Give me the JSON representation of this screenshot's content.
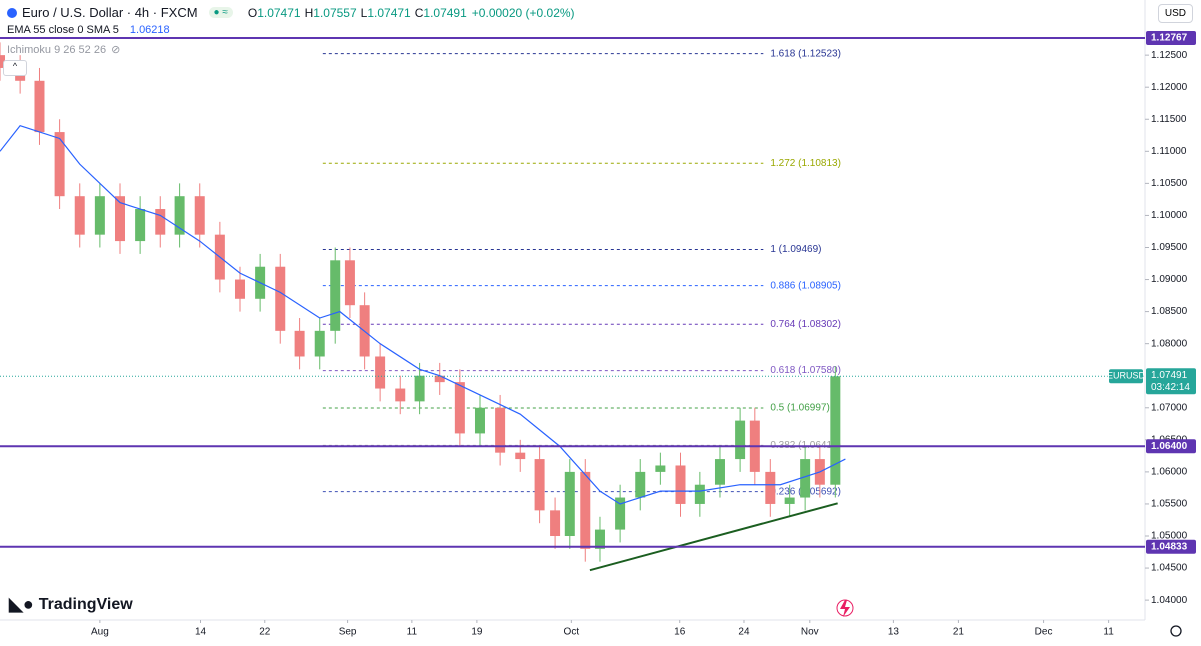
{
  "header": {
    "symbol": "Euro / U.S. Dollar · 4h · FXCM",
    "ohlc": [
      {
        "label": "O",
        "value": "1.07471"
      },
      {
        "label": "H",
        "value": "1.07557"
      },
      {
        "label": "L",
        "value": "1.07471"
      },
      {
        "label": "C",
        "value": "1.07491"
      }
    ],
    "change": "+0.00020 (+0.02%)",
    "ema_legend": "EMA 55 close 0 SMA 5",
    "ema_value": "1.06218",
    "ichimoku": "Ichimoku 9 26 52 26",
    "currency": "USD",
    "brand": "TradingView"
  },
  "chart_data": {
    "type": "candlestick",
    "x": [
      200.1,
      202.7,
      205.2,
      207.8,
      210.4,
      213,
      215.6,
      218.2,
      220.8,
      223.3,
      225.9,
      228.5,
      231.1,
      233.7,
      236.3,
      238.8,
      241.4,
      243.4,
      245.3,
      247.2,
      249.2,
      251.8,
      254.3,
      256.9,
      259.5,
      262.1,
      264.7,
      267.3,
      269.8,
      271.8,
      273.7,
      275.7,
      277.6,
      280.2,
      282.8,
      285.4,
      288,
      290.5,
      293.1,
      295.7,
      297.6,
      299.6,
      302.1,
      304.1,
      306,
      308
    ],
    "open": [
      1.125,
      1.123,
      1.121,
      1.113,
      1.103,
      1.097,
      1.103,
      1.096,
      1.101,
      1.097,
      1.103,
      1.097,
      1.09,
      1.087,
      1.092,
      1.082,
      1.078,
      1.082,
      1.093,
      1.086,
      1.078,
      1.073,
      1.071,
      1.075,
      1.074,
      1.066,
      1.07,
      1.063,
      1.062,
      1.054,
      1.05,
      1.06,
      1.048,
      1.051,
      1.056,
      1.06,
      1.061,
      1.055,
      1.058,
      1.062,
      1.068,
      1.06,
      1.055,
      1.056,
      1.062,
      1.058
    ],
    "high": [
      1.127,
      1.125,
      1.123,
      1.115,
      1.105,
      1.105,
      1.105,
      1.103,
      1.103,
      1.105,
      1.105,
      1.099,
      1.092,
      1.094,
      1.094,
      1.084,
      1.084,
      1.095,
      1.095,
      1.088,
      1.08,
      1.075,
      1.077,
      1.077,
      1.076,
      1.072,
      1.072,
      1.065,
      1.064,
      1.056,
      1.062,
      1.062,
      1.053,
      1.058,
      1.062,
      1.063,
      1.063,
      1.06,
      1.064,
      1.07,
      1.07,
      1.062,
      1.058,
      1.064,
      1.064,
      1.0765
    ],
    "low": [
      1.121,
      1.119,
      1.111,
      1.101,
      1.095,
      1.095,
      1.094,
      1.094,
      1.095,
      1.095,
      1.095,
      1.088,
      1.085,
      1.085,
      1.08,
      1.076,
      1.076,
      1.08,
      1.084,
      1.076,
      1.071,
      1.069,
      1.069,
      1.072,
      1.064,
      1.064,
      1.061,
      1.06,
      1.052,
      1.048,
      1.048,
      1.046,
      1.046,
      1.049,
      1.054,
      1.058,
      1.053,
      1.053,
      1.056,
      1.06,
      1.058,
      1.053,
      1.053,
      1.054,
      1.056,
      1.056
    ],
    "close": [
      1.123,
      1.121,
      1.113,
      1.103,
      1.097,
      1.103,
      1.096,
      1.101,
      1.097,
      1.103,
      1.097,
      1.09,
      1.087,
      1.092,
      1.082,
      1.078,
      1.082,
      1.093,
      1.086,
      1.078,
      1.073,
      1.071,
      1.075,
      1.074,
      1.066,
      1.07,
      1.063,
      1.062,
      1.054,
      1.05,
      1.06,
      1.048,
      1.051,
      1.056,
      1.06,
      1.061,
      1.055,
      1.058,
      1.062,
      1.068,
      1.06,
      1.055,
      1.056,
      1.062,
      1.058,
      1.07491
    ],
    "up_color": "#66bb6a",
    "down_color": "#ef7f7f",
    "ema": {
      "color": "#2962ff",
      "x": [
        200.1,
        202.7,
        207.8,
        210.4,
        215.6,
        220.8,
        225.9,
        231.1,
        236.3,
        241.4,
        244,
        249.2,
        254.3,
        256.9,
        262.1,
        267.3,
        272.4,
        277.6,
        280.2,
        285.4,
        290.5,
        295.7,
        300.9,
        306,
        309.3
      ],
      "values": [
        1.11,
        1.114,
        1.112,
        1.108,
        1.102,
        1.1,
        1.096,
        1.091,
        1.088,
        1.084,
        1.085,
        1.08,
        1.076,
        1.075,
        1.072,
        1.069,
        1.064,
        1.057,
        1.055,
        1.057,
        1.057,
        1.058,
        1.058,
        1.06,
        1.062
      ]
    },
    "horizontal_lines": {
      "color": "#5e35b1",
      "levels": [
        {
          "value": 1.12767,
          "label": "1.12767"
        },
        {
          "value": 1.064,
          "label": "1.06400"
        },
        {
          "value": 1.04833,
          "label": "1.04833"
        }
      ]
    },
    "fib": {
      "x": [
        241.8,
        298.7
      ],
      "levels": [
        {
          "value": 1.12523,
          "label": "1.618 (1.12523)",
          "color": "#283593"
        },
        {
          "value": 1.10813,
          "label": "1.272 (1.10813)",
          "color": "#9aa800"
        },
        {
          "value": 1.09469,
          "label": "1 (1.09469)",
          "color": "#283593"
        },
        {
          "value": 1.08905,
          "label": "0.886 (1.08905)",
          "color": "#2962ff"
        },
        {
          "value": 1.08302,
          "label": "0.764 (1.08302)",
          "color": "#673ab7"
        },
        {
          "value": 1.0758,
          "label": "0.618 (1.07580)",
          "color": "#7e57c2"
        },
        {
          "value": 1.06997,
          "label": "0.5 (1.06997)",
          "color": "#43a047"
        },
        {
          "value": 1.06414,
          "label": "0.382 (1.06414)",
          "color": "#9e9e9e"
        },
        {
          "value": 1.05692,
          "label": "0.236 (1.05692)",
          "color": "#3f51b5"
        }
      ]
    },
    "trendline": {
      "x": [
        276.3,
        308.3
      ],
      "values": [
        1.04467,
        1.0551
      ],
      "color": "#1b5e20"
    },
    "last_price": {
      "value": 1.07491,
      "label": "1.07491",
      "countdown": "03:42:14",
      "symbol": "EURUSD",
      "color": "#26a69a"
    },
    "xlim": [
      200.1,
      348
    ],
    "ylim": [
      1.0369,
      1.1336
    ],
    "xticks": [
      {
        "value": 213,
        "label": "Aug"
      },
      {
        "value": 226,
        "label": "14"
      },
      {
        "value": 234.3,
        "label": "22"
      },
      {
        "value": 245,
        "label": "Sep"
      },
      {
        "value": 253.3,
        "label": "11"
      },
      {
        "value": 261.7,
        "label": "19"
      },
      {
        "value": 273.9,
        "label": "Oct"
      },
      {
        "value": 287.9,
        "label": "16"
      },
      {
        "value": 296.2,
        "label": "24"
      },
      {
        "value": 304.7,
        "label": "Nov"
      },
      {
        "value": 315.5,
        "label": "13"
      },
      {
        "value": 323.9,
        "label": "21"
      },
      {
        "value": 334.9,
        "label": "Dec"
      },
      {
        "value": 343.3,
        "label": "11"
      }
    ],
    "yticks": [
      {
        "value": 1.04,
        "label": "1.04000"
      },
      {
        "value": 1.045,
        "label": "1.04500"
      },
      {
        "value": 1.05,
        "label": "1.05000"
      },
      {
        "value": 1.055,
        "label": "1.05500"
      },
      {
        "value": 1.06,
        "label": "1.06000"
      },
      {
        "value": 1.065,
        "label": "1.06500"
      },
      {
        "value": 1.07,
        "label": "1.07000"
      },
      {
        "value": 1.08,
        "label": "1.08000"
      },
      {
        "value": 1.085,
        "label": "1.08500"
      },
      {
        "value": 1.09,
        "label": "1.09000"
      },
      {
        "value": 1.095,
        "label": "1.09500"
      },
      {
        "value": 1.1,
        "label": "1.10000"
      },
      {
        "value": 1.105,
        "label": "1.10500"
      },
      {
        "value": 1.11,
        "label": "1.11000"
      },
      {
        "value": 1.115,
        "label": "1.11500"
      },
      {
        "value": 1.12,
        "label": "1.12000"
      },
      {
        "value": 1.125,
        "label": "1.12500"
      }
    ]
  }
}
